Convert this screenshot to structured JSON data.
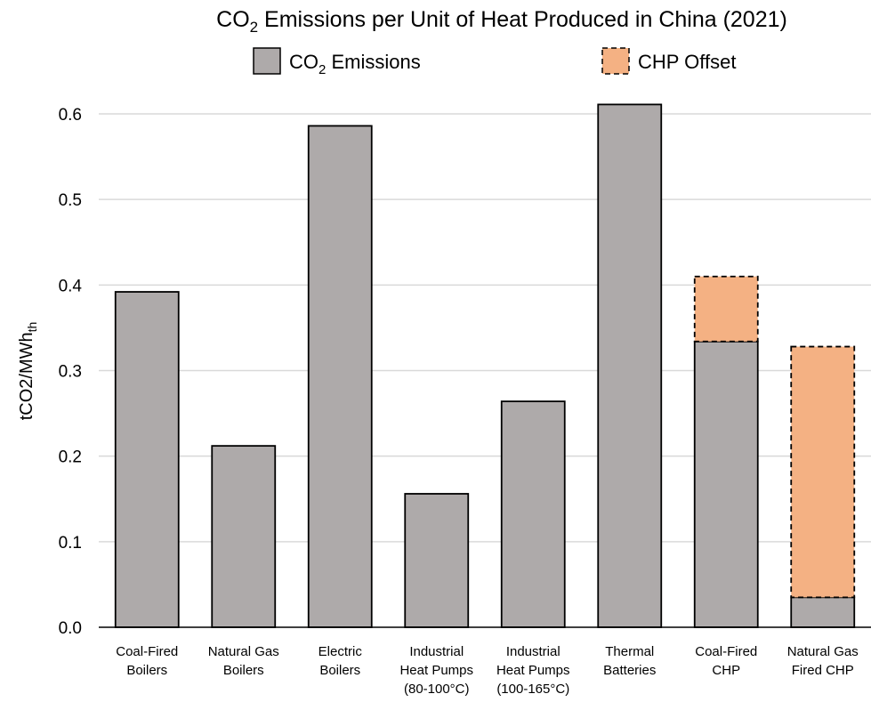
{
  "chart_data": {
    "type": "bar",
    "stacked": true,
    "title": {
      "pre": "CO",
      "sub": "2",
      "post": " Emissions per Unit of Heat Produced in China (2021)"
    },
    "ylabel": {
      "main": "tCO2/MWh",
      "sub": "th"
    },
    "xlabel": "",
    "ylim": [
      0,
      0.6
    ],
    "yticks": [
      "0.0",
      "0.1",
      "0.2",
      "0.3",
      "0.4",
      "0.5",
      "0.6"
    ],
    "grid": true,
    "legend_position": "top",
    "categories": [
      [
        "Coal-Fired",
        "Boilers"
      ],
      [
        "Natural Gas",
        "Boilers"
      ],
      [
        "Electric",
        "Boilers"
      ],
      [
        "Industrial",
        "Heat Pumps",
        "(80-100°C)"
      ],
      [
        "Industrial",
        "Heat Pumps",
        "(100-165°C)"
      ],
      [
        "Thermal",
        "Batteries"
      ],
      [
        "Coal-Fired",
        "CHP"
      ],
      [
        "Natural Gas",
        "Fired CHP"
      ]
    ],
    "series": [
      {
        "name": {
          "pre": "CO",
          "sub": "2",
          "post": " Emissions"
        },
        "color": "#aeaaaa",
        "border": "solid",
        "values": [
          0.392,
          0.212,
          0.586,
          0.156,
          0.264,
          0.611,
          0.334,
          0.035
        ]
      },
      {
        "name": {
          "pre": "CHP Offset",
          "sub": "",
          "post": ""
        },
        "color": "#f4b183",
        "border": "dashed",
        "values": [
          0,
          0,
          0,
          0,
          0,
          0,
          0.076,
          0.293
        ]
      }
    ]
  }
}
